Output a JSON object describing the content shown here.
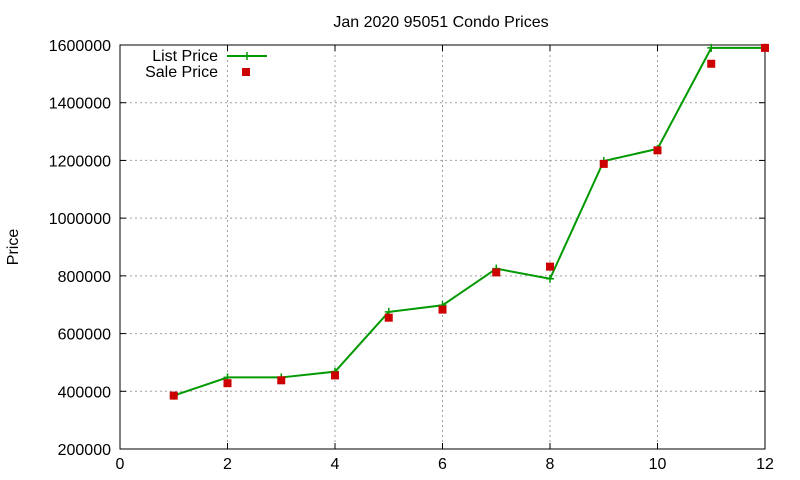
{
  "chart_data": {
    "type": "line",
    "title": "Jan 2020 95051 Condo Prices",
    "xlabel": "",
    "ylabel": "Price",
    "xlim": [
      0,
      12
    ],
    "ylim": [
      200000,
      1600000
    ],
    "xticks": [
      0,
      2,
      4,
      6,
      8,
      10,
      12
    ],
    "yticks": [
      200000,
      400000,
      600000,
      800000,
      1000000,
      1200000,
      1400000,
      1600000
    ],
    "grid": true,
    "legend": "top-left",
    "series": [
      {
        "name": "List Price",
        "style": "lines+crosses",
        "color": "#009900",
        "x": [
          1,
          2,
          3,
          4,
          5,
          6,
          7,
          8,
          9,
          10,
          11,
          12
        ],
        "y": [
          385000,
          448000,
          448000,
          468000,
          675000,
          698000,
          825000,
          790000,
          1198000,
          1240000,
          1590000,
          1590000
        ]
      },
      {
        "name": "Sale Price",
        "style": "squares",
        "color": "#cc0000",
        "x": [
          1,
          2,
          3,
          4,
          5,
          6,
          7,
          8,
          9,
          10,
          11,
          12
        ],
        "y": [
          385000,
          428000,
          438000,
          455000,
          655000,
          683000,
          812000,
          832000,
          1188000,
          1235000,
          1535000,
          1590000
        ]
      }
    ]
  }
}
